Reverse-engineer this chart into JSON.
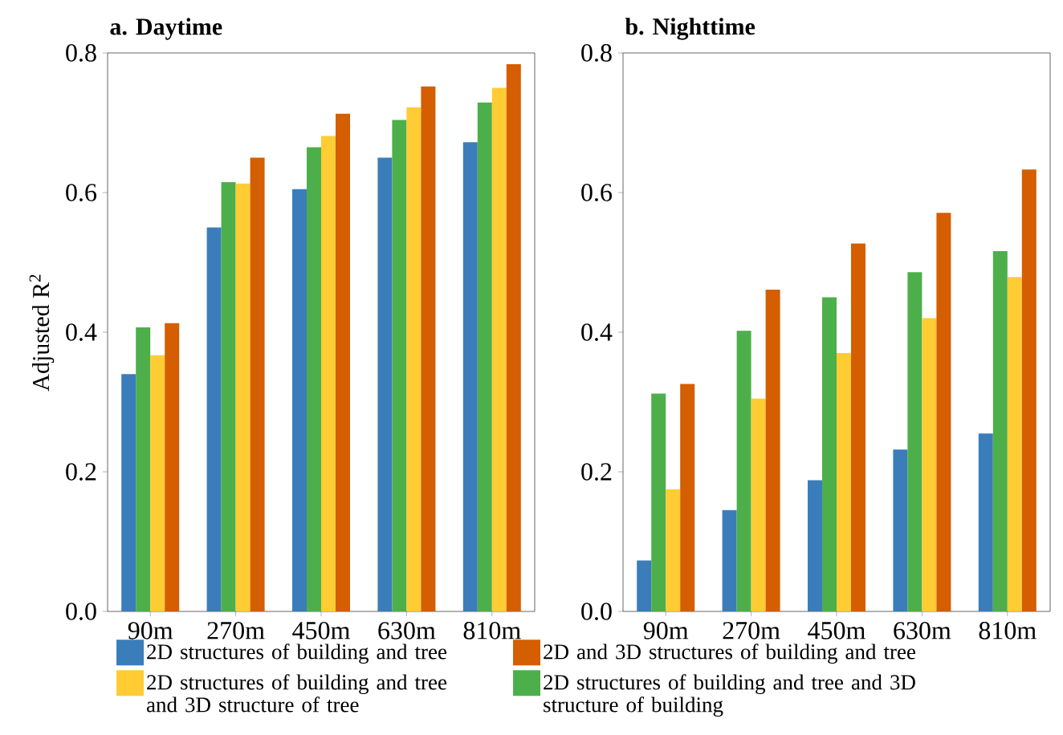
{
  "chart_data": [
    {
      "type": "bar",
      "title": "a. Daytime",
      "ylabel": "Adjusted R$^{2}$",
      "categories": [
        "90m",
        "270m",
        "450m",
        "630m",
        "810m"
      ],
      "ylim": [
        0,
        0.8
      ],
      "yticks": [
        {
          "value": 0,
          "label": "0.0"
        },
        0.2,
        0.4,
        0.6,
        0.8
      ],
      "legend": "bottom",
      "grid": false,
      "series": [
        {
          "name": "2D structures of building and tree",
          "color": "#3a7dba",
          "values": [
            0.34,
            0.55,
            0.605,
            0.65,
            0.672
          ]
        },
        {
          "name": "2D structures of building and tree and 3D structure of building",
          "color": "#4daf4a",
          "values": [
            0.407,
            0.615,
            0.665,
            0.704,
            0.729
          ]
        },
        {
          "name": "2D structures of building and tree and 3D structure of  tree",
          "color": "#ffcc33",
          "values": [
            0.367,
            0.613,
            0.681,
            0.722,
            0.75
          ]
        },
        {
          "name": "2D and 3D structures of building and tree",
          "color": "#d45e00",
          "values": [
            0.413,
            0.65,
            0.713,
            0.752,
            0.784
          ]
        }
      ]
    },
    {
      "type": "bar",
      "title": "b. Nighttime",
      "categories": [
        "90m",
        "270m",
        "450m",
        "630m",
        "810m"
      ],
      "ylim": [
        0,
        0.8
      ],
      "yticks": [
        {
          "value": 0,
          "label": "0.0"
        },
        0.2,
        0.4,
        0.6,
        0.8
      ],
      "grid": false,
      "series": [
        {
          "color": "#3a7dba",
          "values": [
            0.073,
            0.145,
            0.188,
            0.232,
            0.255
          ]
        },
        {
          "color": "#4daf4a",
          "values": [
            0.312,
            0.402,
            0.45,
            0.486,
            0.516
          ]
        },
        {
          "color": "#ffcc33",
          "values": [
            0.175,
            0.305,
            0.37,
            0.42,
            0.479
          ]
        },
        {
          "color": "#d45e00",
          "values": [
            0.326,
            0.461,
            0.527,
            0.571,
            0.633
          ]
        }
      ]
    }
  ]
}
